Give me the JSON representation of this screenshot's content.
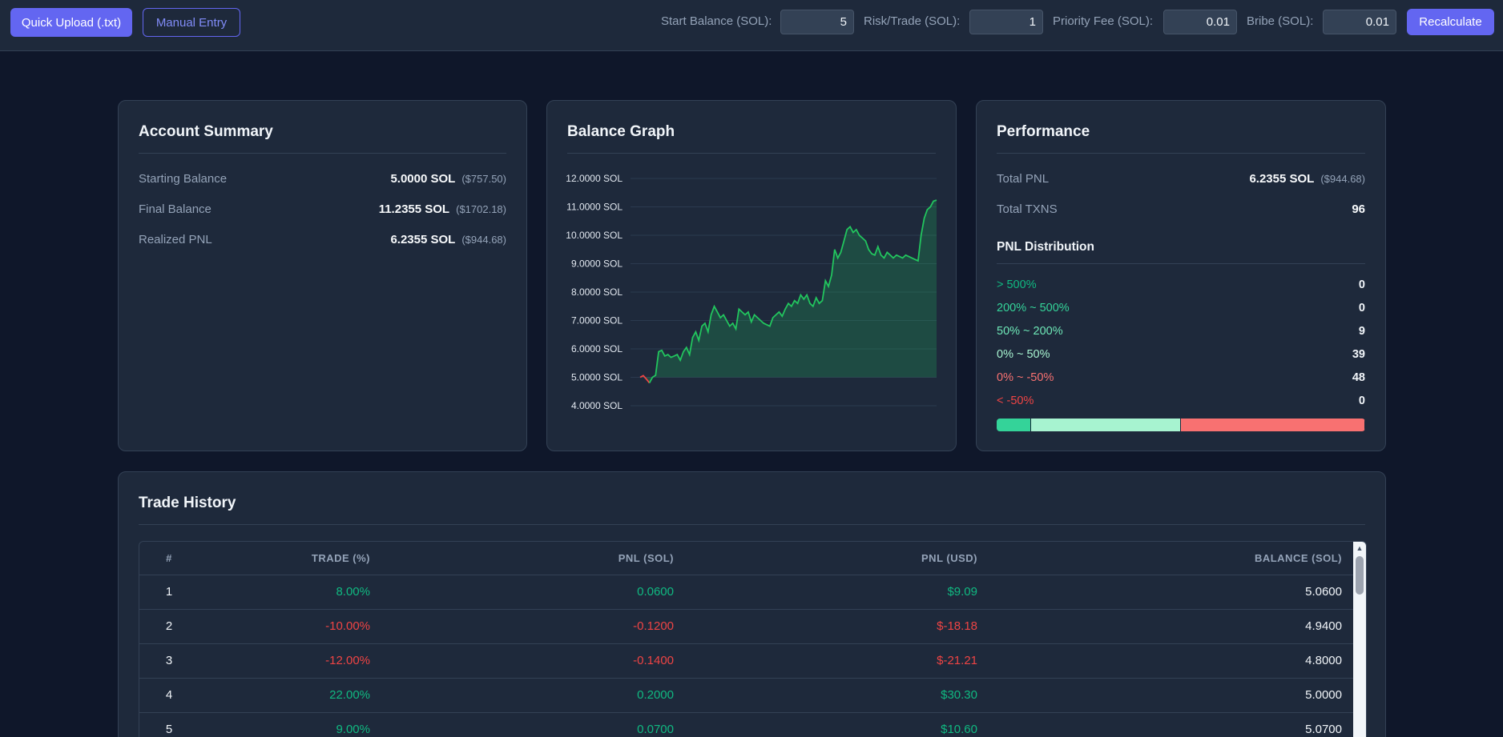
{
  "toolbar": {
    "quick_upload_label": "Quick Upload (.txt)",
    "manual_entry_label": "Manual Entry",
    "start_balance_label": "Start Balance (SOL):",
    "start_balance_value": "5",
    "risk_trade_label": "Risk/Trade (SOL):",
    "risk_trade_value": "1",
    "priority_fee_label": "Priority Fee (SOL):",
    "priority_fee_value": "0.01",
    "bribe_label": "Bribe (SOL):",
    "bribe_value": "0.01",
    "recalculate_label": "Recalculate"
  },
  "account_summary": {
    "title": "Account Summary",
    "rows": [
      {
        "label": "Starting Balance",
        "value": "5.0000 SOL",
        "usd": "($757.50)"
      },
      {
        "label": "Final Balance",
        "value": "11.2355 SOL",
        "usd": "($1702.18)"
      },
      {
        "label": "Realized PNL",
        "value": "6.2355 SOL",
        "usd": "($944.68)"
      }
    ]
  },
  "balance_graph": {
    "title": "Balance Graph",
    "y_ticks": [
      "12.0000 SOL",
      "11.0000 SOL",
      "10.0000 SOL",
      "9.0000 SOL",
      "8.0000 SOL",
      "7.0000 SOL",
      "6.0000 SOL",
      "5.0000 SOL",
      "4.0000 SOL"
    ]
  },
  "chart_data": {
    "type": "area",
    "title": "Balance Graph",
    "xlabel": "",
    "ylabel": "",
    "ylim": [
      4,
      12
    ],
    "y_tick_values": [
      12,
      11,
      10,
      9,
      8,
      7,
      6,
      5,
      4
    ],
    "grid": true,
    "line_color": "#22c55e",
    "start_color": "#ef4444",
    "series": [
      {
        "x": [
          0,
          1,
          2,
          3,
          4,
          5,
          6,
          7,
          8,
          9,
          10,
          11,
          12,
          13,
          14,
          15,
          16,
          17,
          18,
          19,
          20,
          21,
          22,
          23,
          24,
          25,
          26,
          27,
          28,
          29,
          30,
          31,
          32,
          33,
          34,
          35,
          36,
          37,
          38,
          39,
          40,
          41,
          42,
          43,
          44,
          45,
          46,
          47,
          48,
          49,
          50,
          51,
          52,
          53,
          54,
          55,
          56,
          57,
          58,
          59,
          60,
          61,
          62,
          63,
          64,
          65,
          66,
          67,
          68,
          69,
          70,
          71,
          72,
          73,
          74,
          75,
          76,
          77,
          78,
          79,
          80,
          81,
          82,
          83,
          84,
          85,
          86,
          87,
          88,
          89,
          90,
          91,
          92,
          93,
          94,
          95,
          96
        ],
        "values": [
          5.0,
          5.06,
          4.94,
          4.8,
          5.0,
          5.07,
          5.9,
          5.95,
          5.75,
          5.8,
          5.7,
          5.75,
          5.8,
          5.6,
          5.9,
          6.05,
          5.8,
          6.4,
          6.6,
          6.3,
          6.8,
          6.9,
          6.6,
          7.2,
          7.5,
          7.3,
          7.1,
          7.2,
          7.0,
          6.8,
          6.9,
          6.7,
          7.4,
          7.3,
          7.2,
          7.3,
          6.95,
          7.2,
          7.1,
          7.0,
          6.9,
          6.85,
          6.8,
          7.1,
          7.2,
          7.3,
          7.15,
          7.4,
          7.6,
          7.5,
          7.7,
          7.6,
          7.9,
          7.75,
          7.9,
          7.6,
          7.5,
          7.8,
          7.6,
          7.7,
          8.4,
          8.2,
          8.6,
          9.5,
          9.2,
          9.4,
          9.8,
          10.2,
          10.3,
          10.1,
          10.2,
          10.0,
          9.9,
          9.8,
          9.5,
          9.35,
          9.3,
          9.6,
          9.3,
          9.2,
          9.4,
          9.3,
          9.2,
          9.3,
          9.25,
          9.2,
          9.3,
          9.25,
          9.2,
          9.15,
          9.1,
          10.0,
          10.6,
          10.9,
          11.0,
          11.2,
          11.2355
        ]
      }
    ]
  },
  "performance": {
    "title": "Performance",
    "total_pnl_label": "Total PNL",
    "total_pnl_value": "6.2355 SOL",
    "total_pnl_usd": "($944.68)",
    "total_txns_label": "Total TXNS",
    "total_txns_value": "96",
    "distribution_title": "PNL Distribution",
    "distribution": [
      {
        "label": "> 500%",
        "count": "0",
        "color": "#10b981"
      },
      {
        "label": "200% ~ 500%",
        "count": "0",
        "color": "#34d399"
      },
      {
        "label": "50% ~ 200%",
        "count": "9",
        "color": "#6ee7b7"
      },
      {
        "label": "0% ~ 50%",
        "count": "39",
        "color": "#a7f3d0"
      },
      {
        "label": "0% ~ -50%",
        "count": "48",
        "color": "#f87171"
      },
      {
        "label": "< -50%",
        "count": "0",
        "color": "#ef4444"
      }
    ],
    "bar_segments": [
      {
        "fraction": 0.09375,
        "color": "#34d399"
      },
      {
        "fraction": 0.40625,
        "color": "#a7f3d0"
      },
      {
        "fraction": 0.5,
        "color": "#f87171"
      }
    ]
  },
  "trade_history": {
    "title": "Trade History",
    "headers": [
      "#",
      "TRADE (%)",
      "PNL (SOL)",
      "PNL (USD)",
      "BALANCE (SOL)"
    ],
    "rows": [
      {
        "n": "1",
        "trade": "8.00%",
        "pnl": "0.0600",
        "usd": "$9.09",
        "balance": "5.0600",
        "sign": "pos"
      },
      {
        "n": "2",
        "trade": "-10.00%",
        "pnl": "-0.1200",
        "usd": "$-18.18",
        "balance": "4.9400",
        "sign": "neg"
      },
      {
        "n": "3",
        "trade": "-12.00%",
        "pnl": "-0.1400",
        "usd": "$-21.21",
        "balance": "4.8000",
        "sign": "neg"
      },
      {
        "n": "4",
        "trade": "22.00%",
        "pnl": "0.2000",
        "usd": "$30.30",
        "balance": "5.0000",
        "sign": "pos"
      },
      {
        "n": "5",
        "trade": "9.00%",
        "pnl": "0.0700",
        "usd": "$10.60",
        "balance": "5.0700",
        "sign": "pos"
      }
    ]
  }
}
